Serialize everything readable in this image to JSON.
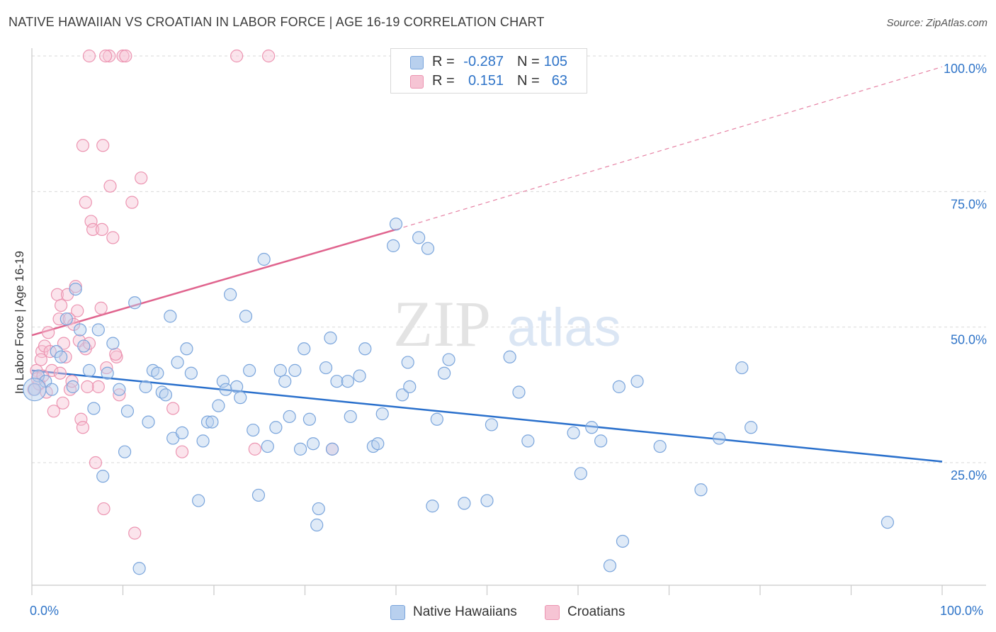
{
  "title": "NATIVE HAWAIIAN VS CROATIAN IN LABOR FORCE | AGE 16-19 CORRELATION CHART",
  "source": "Source: ZipAtlas.com",
  "watermark": {
    "zip": "ZIP",
    "atlas": "atlas"
  },
  "legend": {
    "rows": [
      {
        "r_label": "R =",
        "r_value": "-0.287",
        "n_label": "N =",
        "n_value": "105"
      },
      {
        "r_label": "R =",
        "r_value": "0.151",
        "n_label": "N =",
        "n_value": "63"
      }
    ]
  },
  "bottom_legend": {
    "items": [
      {
        "label": "Native Hawaiians"
      },
      {
        "label": "Croatians"
      }
    ]
  },
  "colors": {
    "blue_fill": "#b8d0ee",
    "blue_stroke": "#7aa5dc",
    "blue_line": "#2a70cc",
    "pink_fill": "#f6c4d4",
    "pink_stroke": "#ec94b1",
    "pink_line": "#e0648e",
    "axis_text": "#2f74c8",
    "grid": "#d9d9d9"
  },
  "chart_data": {
    "type": "scatter",
    "title": "NATIVE HAWAIIAN VS CROATIAN IN LABOR FORCE | AGE 16-19 CORRELATION CHART",
    "xlabel": "",
    "ylabel": "In Labor Force | Age 16-19",
    "xlim": [
      0,
      100
    ],
    "ylim": [
      0,
      102
    ],
    "x_tick_labels": [
      "0.0%",
      "100.0%"
    ],
    "y_ticks": [
      25,
      50,
      75,
      100
    ],
    "y_tick_labels": [
      "25.0%",
      "50.0%",
      "75.0%",
      "100.0%"
    ],
    "grid": true,
    "legend_position": "top-center",
    "series": [
      {
        "name": "Native Hawaiians",
        "R": -0.287,
        "N": 105,
        "trend": {
          "x": [
            0,
            100
          ],
          "y": [
            42.0,
            25.2
          ]
        },
        "points": [
          [
            0.3,
            38.5
          ],
          [
            0.7,
            41.0
          ],
          [
            1.5,
            40.0
          ],
          [
            2.2,
            38.5
          ],
          [
            2.7,
            45.5
          ],
          [
            3.2,
            44.5
          ],
          [
            3.8,
            51.5
          ],
          [
            4.5,
            39.0
          ],
          [
            4.8,
            57.0
          ],
          [
            5.3,
            49.5
          ],
          [
            5.7,
            46.5
          ],
          [
            6.3,
            42.0
          ],
          [
            6.8,
            35.0
          ],
          [
            7.3,
            49.5
          ],
          [
            7.8,
            22.5
          ],
          [
            8.3,
            41.5
          ],
          [
            8.9,
            47.0
          ],
          [
            9.6,
            38.5
          ],
          [
            10.5,
            34.5
          ],
          [
            10.2,
            27.0
          ],
          [
            11.3,
            54.5
          ],
          [
            11.8,
            5.5
          ],
          [
            12.5,
            39.0
          ],
          [
            12.8,
            32.5
          ],
          [
            13.3,
            42.0
          ],
          [
            13.8,
            41.5
          ],
          [
            14.3,
            38.0
          ],
          [
            14.7,
            37.5
          ],
          [
            15.5,
            29.5
          ],
          [
            15.2,
            52.0
          ],
          [
            16.0,
            43.5
          ],
          [
            16.5,
            30.5
          ],
          [
            17.0,
            46.0
          ],
          [
            17.5,
            41.5
          ],
          [
            18.3,
            18.0
          ],
          [
            18.8,
            29.0
          ],
          [
            19.3,
            32.5
          ],
          [
            19.8,
            32.5
          ],
          [
            20.5,
            35.5
          ],
          [
            21.0,
            40.0
          ],
          [
            21.3,
            38.5
          ],
          [
            21.8,
            56.0
          ],
          [
            22.5,
            39.0
          ],
          [
            22.9,
            37.0
          ],
          [
            23.5,
            52.0
          ],
          [
            23.9,
            42.0
          ],
          [
            24.3,
            31.0
          ],
          [
            24.9,
            19.0
          ],
          [
            25.5,
            62.5
          ],
          [
            25.9,
            28.0
          ],
          [
            26.8,
            31.5
          ],
          [
            27.3,
            42.0
          ],
          [
            27.8,
            40.0
          ],
          [
            28.3,
            33.5
          ],
          [
            28.9,
            42.0
          ],
          [
            29.5,
            27.5
          ],
          [
            29.9,
            46.0
          ],
          [
            30.5,
            33.0
          ],
          [
            30.9,
            28.5
          ],
          [
            31.5,
            16.5
          ],
          [
            31.3,
            13.5
          ],
          [
            32.3,
            42.5
          ],
          [
            32.8,
            48.0
          ],
          [
            33.0,
            27.5
          ],
          [
            33.5,
            40.0
          ],
          [
            34.7,
            40.0
          ],
          [
            35.0,
            33.5
          ],
          [
            36.0,
            41.0
          ],
          [
            36.6,
            46.0
          ],
          [
            37.5,
            28.0
          ],
          [
            38.0,
            28.5
          ],
          [
            38.5,
            34.0
          ],
          [
            40.0,
            69.0
          ],
          [
            39.7,
            65.0
          ],
          [
            40.7,
            37.5
          ],
          [
            41.5,
            39.0
          ],
          [
            41.3,
            43.5
          ],
          [
            42.5,
            66.5
          ],
          [
            43.5,
            64.5
          ],
          [
            44.0,
            17.0
          ],
          [
            44.5,
            33.0
          ],
          [
            45.3,
            41.5
          ],
          [
            45.8,
            44.0
          ],
          [
            47.5,
            17.5
          ],
          [
            50.0,
            18.0
          ],
          [
            50.5,
            32.0
          ],
          [
            52.5,
            44.5
          ],
          [
            53.5,
            38.0
          ],
          [
            54.5,
            29.0
          ],
          [
            59.5,
            30.5
          ],
          [
            60.3,
            23.0
          ],
          [
            61.5,
            31.5
          ],
          [
            62.5,
            29.0
          ],
          [
            64.5,
            39.0
          ],
          [
            64.9,
            10.5
          ],
          [
            66.5,
            40.0
          ],
          [
            69.0,
            28.0
          ],
          [
            73.5,
            20.0
          ],
          [
            75.5,
            29.5
          ],
          [
            78.0,
            42.5
          ],
          [
            79.0,
            31.5
          ],
          [
            94.0,
            14.0
          ],
          [
            63.5,
            6.0
          ]
        ]
      },
      {
        "name": "Croatians",
        "R": 0.151,
        "N": 63,
        "trend": {
          "x": [
            0,
            40
          ],
          "y": [
            48.5,
            68.0
          ],
          "dashed_to": {
            "x": 100,
            "y": 98.0
          }
        },
        "points": [
          [
            0.2,
            38.5
          ],
          [
            0.5,
            42.0
          ],
          [
            0.8,
            39.5
          ],
          [
            1.1,
            45.5
          ],
          [
            1.4,
            46.5
          ],
          [
            1.8,
            49.0
          ],
          [
            2.2,
            42.0
          ],
          [
            2.4,
            34.5
          ],
          [
            2.8,
            56.0
          ],
          [
            3.0,
            51.5
          ],
          [
            3.2,
            54.0
          ],
          [
            3.5,
            47.0
          ],
          [
            3.7,
            44.5
          ],
          [
            3.9,
            56.0
          ],
          [
            4.2,
            38.5
          ],
          [
            4.4,
            40.0
          ],
          [
            4.8,
            57.5
          ],
          [
            5.0,
            53.0
          ],
          [
            5.2,
            47.5
          ],
          [
            5.4,
            33.0
          ],
          [
            5.6,
            31.5
          ],
          [
            5.9,
            46.0
          ],
          [
            6.3,
            47.0
          ],
          [
            6.5,
            69.5
          ],
          [
            6.7,
            68.0
          ],
          [
            7.0,
            25.0
          ],
          [
            7.3,
            39.0
          ],
          [
            7.6,
            53.5
          ],
          [
            7.9,
            16.5
          ],
          [
            8.2,
            42.5
          ],
          [
            8.6,
            76.0
          ],
          [
            8.9,
            66.5
          ],
          [
            9.3,
            44.5
          ],
          [
            9.6,
            37.5
          ],
          [
            10.0,
            100.0
          ],
          [
            10.3,
            100.0
          ],
          [
            11.0,
            73.0
          ],
          [
            11.3,
            12.0
          ],
          [
            12.0,
            77.5
          ],
          [
            5.6,
            83.5
          ],
          [
            7.8,
            83.5
          ],
          [
            8.5,
            100.0
          ],
          [
            8.1,
            100.0
          ],
          [
            6.3,
            100.0
          ],
          [
            22.5,
            100.0
          ],
          [
            26.0,
            100.0
          ],
          [
            16.5,
            27.0
          ],
          [
            15.5,
            35.0
          ],
          [
            24.5,
            27.5
          ],
          [
            33.0,
            27.5
          ],
          [
            5.9,
            73.0
          ],
          [
            7.7,
            68.0
          ],
          [
            9.2,
            45.0
          ],
          [
            4.1,
            51.5
          ],
          [
            2.0,
            45.5
          ],
          [
            1.0,
            44.0
          ],
          [
            3.1,
            41.5
          ],
          [
            4.6,
            50.5
          ],
          [
            0.6,
            40.5
          ],
          [
            1.6,
            38.0
          ],
          [
            6.1,
            39.0
          ],
          [
            3.4,
            36.0
          ],
          [
            1.2,
            41.0
          ]
        ]
      }
    ]
  }
}
